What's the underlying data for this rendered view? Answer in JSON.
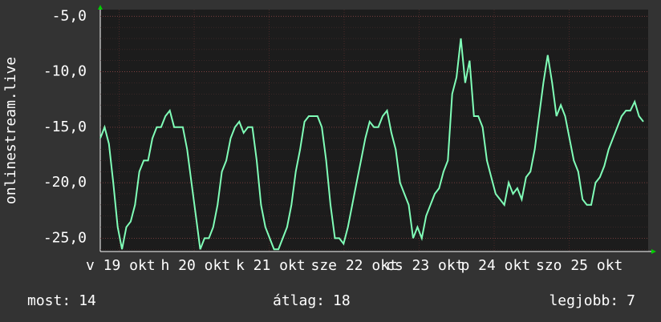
{
  "chart_data": {
    "type": "line",
    "y_label": "onlinestream.live",
    "xlabels": [
      "v 19 okt",
      "h 20 okt",
      "k 21 okt",
      "sze 22 okt",
      "cs 23 okt",
      "p 24 okt",
      "szo 25 okt"
    ],
    "series": [
      {
        "name": "onlinestream.live",
        "color": "#80ffb8",
        "values": [
          -16,
          -15,
          -16.5,
          -20,
          -24,
          -26,
          -24,
          -23.5,
          -22,
          -19,
          -18,
          -18,
          -16,
          -15,
          -15,
          -14,
          -13.5,
          -15,
          -15,
          -15,
          -17,
          -20,
          -23,
          -26,
          -25,
          -25,
          -24,
          -22,
          -19,
          -18,
          -16,
          -15,
          -14.5,
          -15.5,
          -15,
          -15,
          -18,
          -22,
          -24,
          -25,
          -26,
          -26,
          -25,
          -24,
          -22,
          -19,
          -17,
          -14.5,
          -14,
          -14,
          -14,
          -15,
          -18,
          -22,
          -25,
          -25,
          -25.5,
          -24,
          -22,
          -20,
          -18,
          -16,
          -14.5,
          -15,
          -15,
          -14,
          -13.5,
          -15.5,
          -17,
          -20,
          -21,
          -22,
          -25,
          -24,
          -25,
          -23,
          -22,
          -21,
          -20.5,
          -19,
          -18,
          -12,
          -10.5,
          -7,
          -11,
          -9,
          -14,
          -14,
          -15,
          -18,
          -19.5,
          -21,
          -21.5,
          -22,
          -20,
          -21,
          -20.5,
          -21.5,
          -19.5,
          -19,
          -17,
          -14,
          -11,
          -8.5,
          -11,
          -14,
          -13,
          -14,
          -16,
          -18,
          -19,
          -21.5,
          -22,
          -22,
          -20,
          -19.5,
          -18.5,
          -17,
          -16,
          -15,
          -14,
          -13.5,
          -13.5,
          -12.7,
          -14,
          -14.5
        ]
      }
    ],
    "ylim": [
      -26.2,
      -4.4
    ],
    "yticks": [
      {
        "value": -5,
        "label": "-5,0"
      },
      {
        "value": -10,
        "label": "-10,0"
      },
      {
        "value": -15,
        "label": "-15,0"
      },
      {
        "value": -20,
        "label": "-20,0"
      },
      {
        "value": -25,
        "label": "-25,0"
      }
    ],
    "grid": true,
    "stats": [
      {
        "label": "most:",
        "value": 14
      },
      {
        "label": "átlag:",
        "value": 18
      },
      {
        "label": "legjobb:",
        "value": 7
      }
    ]
  }
}
